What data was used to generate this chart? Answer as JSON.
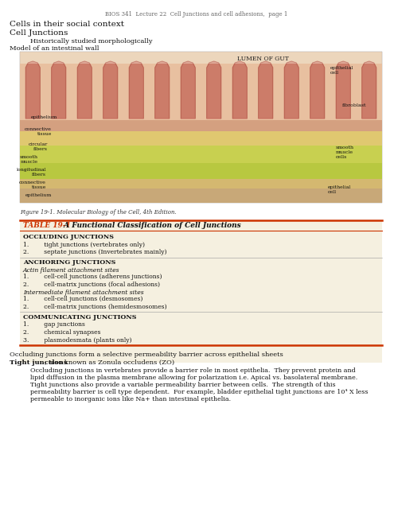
{
  "header": "BIOS 341  Lecture 22  Cell Junctions and cell adhesions,  page 1",
  "title1": "Cells in their social context",
  "title2": "Cell Junctions",
  "subtitle1": "Historically studied morphologically",
  "subtitle2": "Model of an intestinal wall",
  "figure_caption": "Figure 19-1. Molecular Biology of the Cell, 4th Edition.",
  "table_title_red": "TABLE 19-1",
  "table_title_black": " A Functional Classification of Cell Junctions",
  "table_bg": "#f5f0e0",
  "table_border_color": "#cc3300",
  "section1_header": "OCCLUDING JUNCTIONS",
  "section1_items": [
    "1.        tight junctions (vertebrates only)",
    "2.        septate junctions (Invertebrates mainly)"
  ],
  "section2_header": "ANCHORING JUNCTIONS",
  "section2_sub1": "Actin filament attachment sites",
  "section2_sub1_items": [
    "1.        cell-cell junctions (adherens junctions)",
    "2.        cell-matrix junctions (focal adhesions)"
  ],
  "section2_sub2": "Intermediate filament attachment sites",
  "section2_sub2_items": [
    "1.        cell-cell junctions (desmosomes)",
    "2.        cell-matrix junctions (hemidesmosomes)"
  ],
  "section3_header": "COMMUNICATING JUNCTIONS",
  "section3_items": [
    "1.        gap junctions",
    "2.        chemical synapses",
    "3.        plasmodesmata (plants only)"
  ],
  "bottom_text1": "Occluding junctions form a selective permeability barrier across epithelial sheets",
  "bottom_text2_bold": "Tight junctions",
  "bottom_text2_rest": ", also known as Zonula occludens (ZO)",
  "bottom_indent_lines": [
    "Occluding junctions in vertebrates provide a barrier role in most epithelia.  They prevent protein and",
    "lipid diffusion in the plasma membrane allowing for polarization i.e. Apical vs. basolateral membrane.",
    "Tight junctions also provide a variable permeability barrier between cells.  The strength of this",
    "permeability barrier is cell type dependent.  For example, bladder epithelial tight junctions are 10⁴ X less",
    "permeable to inorganic ions like Na+ than intestinal epithelia."
  ],
  "bg_color": "#ffffff",
  "text_color": "#111111",
  "gray_color": "#555555"
}
